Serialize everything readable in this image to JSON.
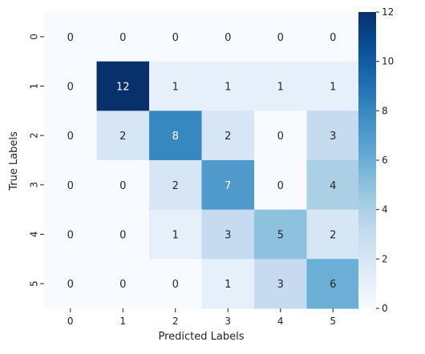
{
  "chart_data": {
    "type": "heatmap",
    "x_categories": [
      "0",
      "1",
      "2",
      "3",
      "4",
      "5"
    ],
    "y_categories": [
      "0",
      "1",
      "2",
      "3",
      "4",
      "5"
    ],
    "values": [
      [
        0,
        0,
        0,
        0,
        0,
        0
      ],
      [
        0,
        12,
        1,
        1,
        1,
        1
      ],
      [
        0,
        2,
        8,
        2,
        0,
        3
      ],
      [
        0,
        0,
        2,
        7,
        0,
        4
      ],
      [
        0,
        0,
        1,
        3,
        5,
        2
      ],
      [
        0,
        0,
        0,
        1,
        3,
        6
      ]
    ],
    "xlabel": "Predicted Labels",
    "ylabel": "True Labels",
    "colorbar": {
      "min": 0,
      "max": 12,
      "ticks": [
        "0",
        "2",
        "4",
        "6",
        "8",
        "10",
        "12"
      ]
    },
    "colormap": "Blues",
    "colors": {
      "low": "#f7fbff",
      "high": "#08306b",
      "text_light": "#ffffff",
      "text_dark": "#262626"
    }
  }
}
